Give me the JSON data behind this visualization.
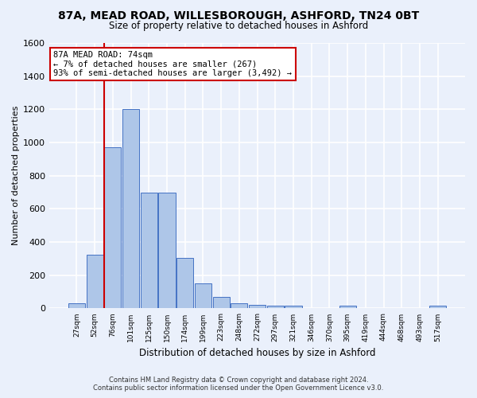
{
  "title": "87A, MEAD ROAD, WILLESBOROUGH, ASHFORD, TN24 0BT",
  "subtitle": "Size of property relative to detached houses in Ashford",
  "xlabel": "Distribution of detached houses by size in Ashford",
  "ylabel": "Number of detached properties",
  "footer_line1": "Contains HM Land Registry data © Crown copyright and database right 2024.",
  "footer_line2": "Contains public sector information licensed under the Open Government Licence v3.0.",
  "bar_labels": [
    "27sqm",
    "52sqm",
    "76sqm",
    "101sqm",
    "125sqm",
    "150sqm",
    "174sqm",
    "199sqm",
    "223sqm",
    "248sqm",
    "272sqm",
    "297sqm",
    "321sqm",
    "346sqm",
    "370sqm",
    "395sqm",
    "419sqm",
    "444sqm",
    "468sqm",
    "493sqm",
    "517sqm"
  ],
  "bar_values": [
    30,
    325,
    970,
    1200,
    700,
    700,
    305,
    150,
    70,
    30,
    20,
    15,
    15,
    0,
    0,
    15,
    0,
    0,
    0,
    0,
    15
  ],
  "bar_color": "#aec6e8",
  "bar_edge_color": "#4472c4",
  "background_color": "#eaf0fb",
  "grid_color": "#ffffff",
  "annotation_text": "87A MEAD ROAD: 74sqm\n← 7% of detached houses are smaller (267)\n93% of semi-detached houses are larger (3,492) →",
  "annotation_box_color": "#ffffff",
  "annotation_border_color": "#cc0000",
  "vline_x_index": 1.5,
  "vline_color": "#cc0000",
  "ylim": [
    0,
    1600
  ],
  "yticks": [
    0,
    200,
    400,
    600,
    800,
    1000,
    1200,
    1400,
    1600
  ]
}
